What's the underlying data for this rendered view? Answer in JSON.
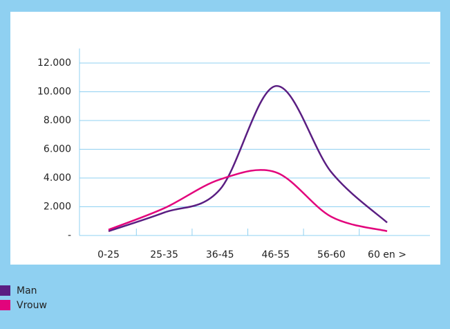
{
  "chart_data": {
    "type": "line",
    "categories": [
      "0-25",
      "25-35",
      "36-45",
      "46-55",
      "56-60",
      "60 en >"
    ],
    "series": [
      {
        "name": "Man",
        "color": "#5a1e82",
        "values": [
          300,
          1600,
          3200,
          10400,
          4400,
          900
        ]
      },
      {
        "name": "Vrouw",
        "color": "#e2047c",
        "values": [
          400,
          1900,
          3900,
          4400,
          1300,
          300
        ]
      }
    ],
    "ylim": [
      0,
      12000
    ],
    "yticks": [
      {
        "value": 0,
        "label": "-"
      },
      {
        "value": 2000,
        "label": "2.000"
      },
      {
        "value": 4000,
        "label": "4.000"
      },
      {
        "value": 6000,
        "label": "6.000"
      },
      {
        "value": 8000,
        "label": "8.000"
      },
      {
        "value": 10000,
        "label": "10.000"
      },
      {
        "value": 12000,
        "label": "12.000"
      }
    ],
    "grid": true,
    "smooth": true
  }
}
